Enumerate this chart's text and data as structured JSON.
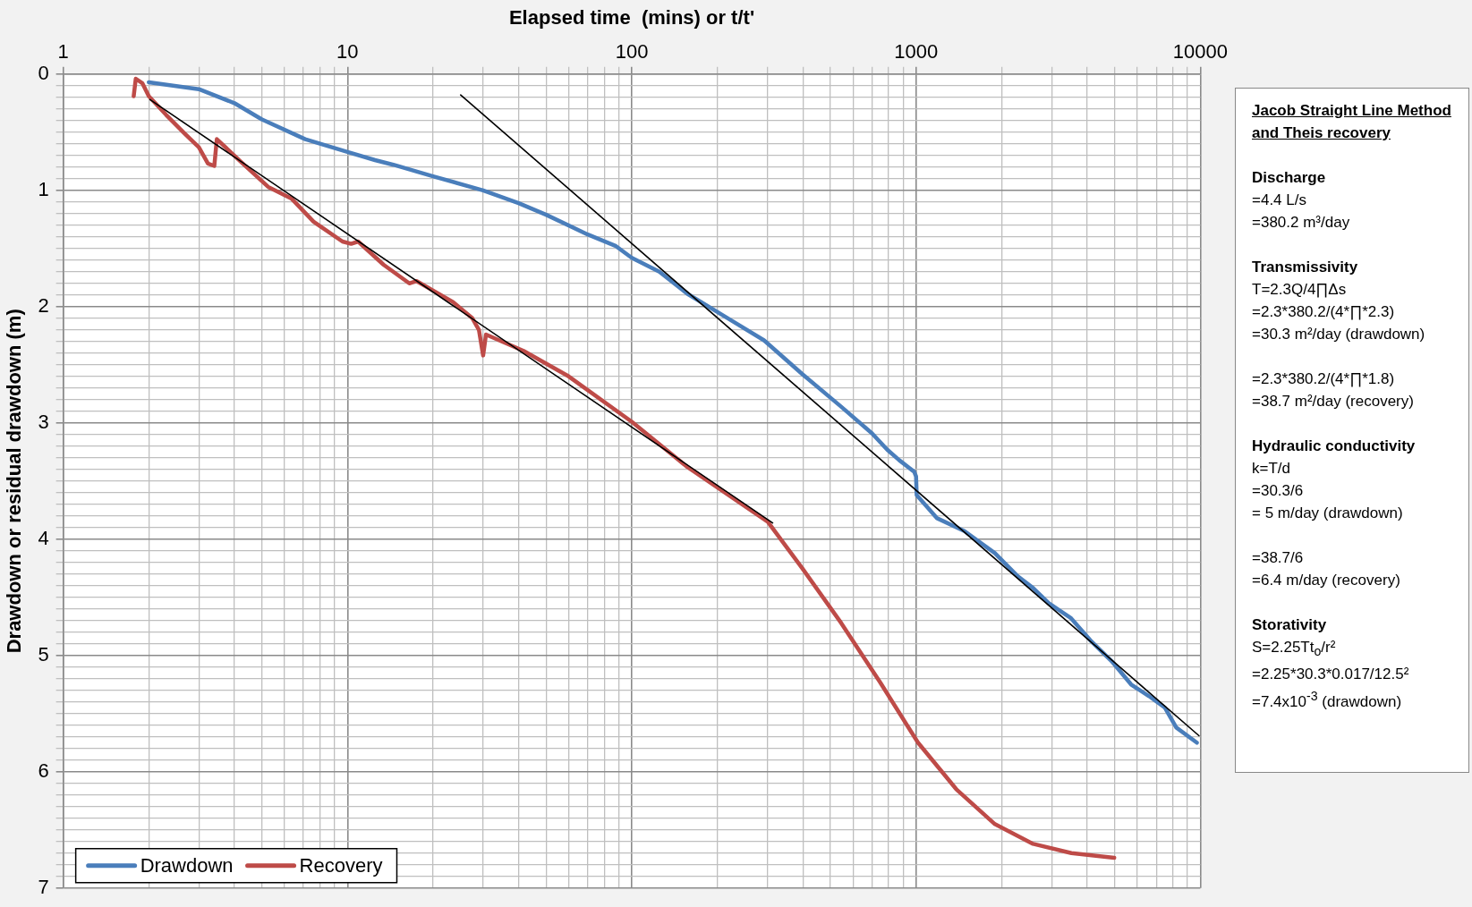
{
  "chart_data": {
    "type": "line",
    "xlabel": "Elapsed time  (mins) or t/t'",
    "ylabel": "Drawdown or residual drawdown (m)",
    "log": "x",
    "grid": true,
    "legend": "bottom left",
    "marker": "none",
    "xlim": [
      1,
      10000
    ],
    "xticks": [
      1,
      {
        "value": 2,
        "label": null
      },
      {
        "value": 3,
        "label": null
      },
      {
        "value": 4,
        "label": null
      },
      {
        "value": 5,
        "label": null
      },
      {
        "value": 6,
        "label": null
      },
      {
        "value": 7,
        "label": null
      },
      {
        "value": 8,
        "label": null
      },
      {
        "value": 9,
        "label": null
      },
      10,
      {
        "value": 20,
        "label": null
      },
      {
        "value": 30,
        "label": null
      },
      {
        "value": 40,
        "label": null
      },
      {
        "value": 50,
        "label": null
      },
      {
        "value": 60,
        "label": null
      },
      {
        "value": 70,
        "label": null
      },
      {
        "value": 80,
        "label": null
      },
      {
        "value": 90,
        "label": null
      },
      100,
      {
        "value": 200,
        "label": null
      },
      {
        "value": 300,
        "label": null
      },
      {
        "value": 400,
        "label": null
      },
      {
        "value": 500,
        "label": null
      },
      {
        "value": 600,
        "label": null
      },
      {
        "value": 700,
        "label": null
      },
      {
        "value": 800,
        "label": null
      },
      {
        "value": 900,
        "label": null
      },
      1000,
      {
        "value": 2000,
        "label": null
      },
      {
        "value": 3000,
        "label": null
      },
      {
        "value": 4000,
        "label": null
      },
      {
        "value": 5000,
        "label": null
      },
      {
        "value": 6000,
        "label": null
      },
      {
        "value": 7000,
        "label": null
      },
      {
        "value": 8000,
        "label": null
      },
      {
        "value": 9000,
        "label": null
      },
      10000
    ],
    "ylim": [
      7,
      0
    ],
    "yticks": [
      0,
      {
        "value": 0.1,
        "label": null
      },
      {
        "value": 0.2,
        "label": null
      },
      {
        "value": 0.3,
        "label": null
      },
      {
        "value": 0.4,
        "label": null
      },
      {
        "value": 0.5,
        "label": null
      },
      {
        "value": 0.6,
        "label": null
      },
      {
        "value": 0.7,
        "label": null
      },
      {
        "value": 0.8,
        "label": null
      },
      {
        "value": 0.9,
        "label": null
      },
      1,
      {
        "value": 1.1,
        "label": null
      },
      {
        "value": 1.2,
        "label": null
      },
      {
        "value": 1.3,
        "label": null
      },
      {
        "value": 1.4,
        "label": null
      },
      {
        "value": 1.5,
        "label": null
      },
      {
        "value": 1.6,
        "label": null
      },
      {
        "value": 1.7,
        "label": null
      },
      {
        "value": 1.8,
        "label": null
      },
      {
        "value": 1.9,
        "label": null
      },
      2,
      {
        "value": 2.1,
        "label": null
      },
      {
        "value": 2.2,
        "label": null
      },
      {
        "value": 2.3,
        "label": null
      },
      {
        "value": 2.4,
        "label": null
      },
      {
        "value": 2.5,
        "label": null
      },
      {
        "value": 2.6,
        "label": null
      },
      {
        "value": 2.7,
        "label": null
      },
      {
        "value": 2.8,
        "label": null
      },
      {
        "value": 2.9,
        "label": null
      },
      3,
      {
        "value": 3.1,
        "label": null
      },
      {
        "value": 3.2,
        "label": null
      },
      {
        "value": 3.3,
        "label": null
      },
      {
        "value": 3.4,
        "label": null
      },
      {
        "value": 3.5,
        "label": null
      },
      {
        "value": 3.6,
        "label": null
      },
      {
        "value": 3.7,
        "label": null
      },
      {
        "value": 3.8,
        "label": null
      },
      {
        "value": 3.9,
        "label": null
      },
      4,
      {
        "value": 4.1,
        "label": null
      },
      {
        "value": 4.2,
        "label": null
      },
      {
        "value": 4.3,
        "label": null
      },
      {
        "value": 4.4,
        "label": null
      },
      {
        "value": 4.5,
        "label": null
      },
      {
        "value": 4.6,
        "label": null
      },
      {
        "value": 4.7,
        "label": null
      },
      {
        "value": 4.8,
        "label": null
      },
      {
        "value": 4.9,
        "label": null
      },
      5,
      {
        "value": 5.1,
        "label": null
      },
      {
        "value": 5.2,
        "label": null
      },
      {
        "value": 5.3,
        "label": null
      },
      {
        "value": 5.4,
        "label": null
      },
      {
        "value": 5.5,
        "label": null
      },
      {
        "value": 5.6,
        "label": null
      },
      {
        "value": 5.7,
        "label": null
      },
      {
        "value": 5.8,
        "label": null
      },
      {
        "value": 5.9,
        "label": null
      },
      6,
      {
        "value": 6.1,
        "label": null
      },
      {
        "value": 6.2,
        "label": null
      },
      {
        "value": 6.3,
        "label": null
      },
      {
        "value": 6.4,
        "label": null
      },
      {
        "value": 6.5,
        "label": null
      },
      {
        "value": 6.6,
        "label": null
      },
      {
        "value": 6.7,
        "label": null
      },
      {
        "value": 6.8,
        "label": null
      },
      {
        "value": 6.9,
        "label": null
      },
      7
    ],
    "series": [
      {
        "name": "Drawdown",
        "type": "line",
        "color": "#4a7ebb",
        "x": [
          2,
          3,
          4,
          5,
          7.1,
          10,
          12.5,
          14.5,
          20,
          30,
          40,
          50,
          70,
          88,
          100,
          125,
          157,
          221,
          292,
          398,
          545,
          700,
          792,
          872,
          985,
          1000,
          1005,
          1186,
          1480,
          1893,
          2280,
          2580,
          2930,
          3510,
          4140,
          4880,
          5710,
          6600,
          7510,
          8230,
          9720
        ],
        "values": [
          0.07,
          0.13,
          0.25,
          0.39,
          0.56,
          0.67,
          0.74,
          0.78,
          0.88,
          1.0,
          1.11,
          1.21,
          1.38,
          1.48,
          1.58,
          1.7,
          1.89,
          2.11,
          2.29,
          2.58,
          2.86,
          3.09,
          3.23,
          3.32,
          3.42,
          3.46,
          3.62,
          3.82,
          3.93,
          4.12,
          4.32,
          4.42,
          4.55,
          4.68,
          4.88,
          5.05,
          5.25,
          5.35,
          5.45,
          5.62,
          5.75
        ]
      },
      {
        "name": "Recovery",
        "type": "line",
        "color": "#be4b48",
        "x": [
          1.77,
          1.8,
          1.9,
          2,
          2.3,
          2.67,
          3,
          3.23,
          3.4,
          3.47,
          4.2,
          5.26,
          6.35,
          7.6,
          9.6,
          10.3,
          10.9,
          13.4,
          16.5,
          17.5,
          23.5,
          27.5,
          29,
          30,
          30.7,
          41.6,
          60,
          100,
          157,
          301,
          398,
          545,
          743,
          1016,
          1385,
          1893,
          2580,
          3520,
          4980
        ],
        "values": [
          0.19,
          0.04,
          0.08,
          0.19,
          0.35,
          0.51,
          0.63,
          0.77,
          0.79,
          0.56,
          0.75,
          0.97,
          1.07,
          1.27,
          1.44,
          1.46,
          1.44,
          1.64,
          1.8,
          1.78,
          1.96,
          2.1,
          2.2,
          2.42,
          2.24,
          2.38,
          2.6,
          2.99,
          3.38,
          3.85,
          4.25,
          4.72,
          5.22,
          5.75,
          6.15,
          6.45,
          6.62,
          6.7,
          6.74
        ]
      },
      {
        "type": "line",
        "color": "#000000",
        "x": [
          2.02,
          313
        ],
        "values": [
          0.22,
          3.86
        ]
      },
      {
        "type": "line",
        "color": "#000000",
        "x": [
          25,
          9890
        ],
        "values": [
          0.18,
          5.69
        ]
      }
    ],
    "annotations": [
      "Jacob Straight Line Method and Theis recovery",
      "Discharge\n=4.4 L/s\n=380.2 m³/day",
      "Transmissivity\nT=2.3Q/4∏Δs\n=2.3*380.2/(4*∏*2.3)\n=30.3 m²/day (drawdown)\n\n=2.3*380.2/(4*∏*1.8)\n=38.7 m²/day (recovery)",
      "Hydraulic conductivity\nk=T/d\n=30.3/6\n= 5 m/day (drawdown)\n\n=38.7/6\n=6.4 m/day (recovery)",
      "Storativity\nS=2.25Tt$_{o}$/r²\n=2.25*30.3*0.017/12.5²\n=7.4x10$^{-3}$ (drawdown)"
    ]
  }
}
